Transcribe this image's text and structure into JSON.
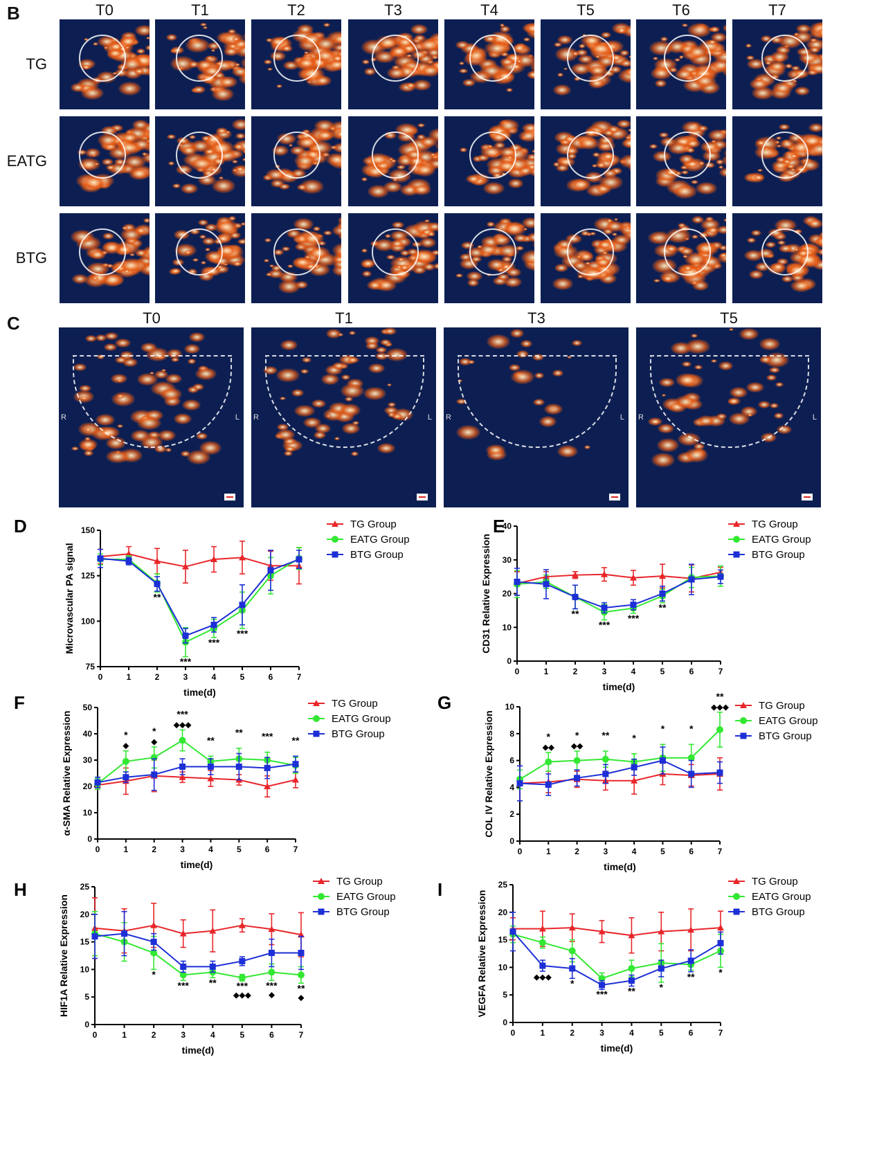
{
  "panels": {
    "B": {
      "letter": "B",
      "columns": [
        "T0",
        "T1",
        "T2",
        "T3",
        "T4",
        "T5",
        "T6",
        "T7"
      ],
      "rows": [
        "TG",
        "EATG",
        "BTG"
      ]
    },
    "C": {
      "letter": "C",
      "columns": [
        "T0",
        "T1",
        "T3",
        "T5"
      ],
      "side_left": "R",
      "side_right": "L"
    }
  },
  "colors": {
    "TG": "#e8262a",
    "EATG": "#33e833",
    "BTG": "#1d2fd6",
    "image_bg": "#0d1f52"
  },
  "chart_data": [
    {
      "panel": "D",
      "type": "line",
      "ylabel": "Microvascular PA signal",
      "xlabel": "time(d)",
      "x": [
        0,
        1,
        2,
        3,
        4,
        5,
        6,
        7
      ],
      "ylim": [
        75,
        150
      ],
      "yticks": [
        75,
        100,
        125,
        150
      ],
      "series": [
        {
          "name": "TG Group",
          "key": "TG",
          "values": [
            135.5,
            137,
            133,
            130,
            134,
            135,
            130.5,
            130.5
          ],
          "err": [
            4,
            4,
            7,
            9,
            7,
            9,
            8,
            10
          ]
        },
        {
          "name": "EATG Group",
          "key": "EATG",
          "values": [
            134,
            134,
            121,
            88.5,
            96,
            106,
            125,
            134.5
          ],
          "err": [
            3,
            2,
            5,
            8,
            5,
            10,
            10,
            6
          ]
        },
        {
          "name": "BTG Group",
          "key": "BTG",
          "values": [
            134.5,
            133,
            120.5,
            92,
            98,
            109,
            128,
            134
          ],
          "err": [
            5,
            2,
            4,
            4,
            4,
            11,
            11,
            5
          ]
        }
      ],
      "annotations": [
        {
          "x": 2,
          "text": "**",
          "place": "below"
        },
        {
          "x": 3,
          "text": "***",
          "place": "below"
        },
        {
          "x": 4,
          "text": "***",
          "place": "below"
        },
        {
          "x": 5,
          "text": "***",
          "place": "below"
        }
      ]
    },
    {
      "panel": "E",
      "type": "line",
      "ylabel": "CD31 Relative Expression",
      "xlabel": "time(d)",
      "x": [
        0,
        1,
        2,
        3,
        4,
        5,
        6,
        7
      ],
      "ylim": [
        0,
        40
      ],
      "yticks": [
        0,
        10,
        20,
        30,
        40
      ],
      "series": [
        {
          "name": "TG Group",
          "key": "TG",
          "values": [
            23,
            25,
            25.5,
            25.7,
            24.7,
            25.2,
            24.5,
            26.3
          ],
          "err": [
            3.5,
            1.5,
            1,
            2,
            2.2,
            3.5,
            4,
            1.5
          ]
        },
        {
          "name": "EATG Group",
          "key": "EATG",
          "values": [
            22.8,
            23.5,
            19,
            14.5,
            15.7,
            19.3,
            24.8,
            25.2
          ],
          "err": [
            4,
            2,
            3.5,
            2.3,
            1.5,
            2,
            3,
            3
          ]
        },
        {
          "name": "BTG Group",
          "key": "BTG",
          "values": [
            23.5,
            22.8,
            19,
            15.8,
            16.7,
            20,
            24.2,
            25
          ],
          "err": [
            4,
            4.3,
            3.5,
            1.5,
            1.5,
            2.2,
            4.5,
            2
          ]
        }
      ],
      "annotations": [
        {
          "x": 2,
          "text": "**",
          "place": "below"
        },
        {
          "x": 3,
          "text": "***",
          "place": "below"
        },
        {
          "x": 4,
          "text": "***",
          "place": "below"
        },
        {
          "x": 5,
          "text": "**",
          "place": "below"
        }
      ]
    },
    {
      "panel": "F",
      "type": "line",
      "ylabel": "α-SMA Relative Expression",
      "xlabel": "time(d)",
      "x": [
        0,
        1,
        2,
        3,
        4,
        5,
        6,
        7
      ],
      "ylim": [
        0,
        50
      ],
      "yticks": [
        0,
        10,
        20,
        30,
        40,
        50
      ],
      "series": [
        {
          "name": "TG Group",
          "key": "TG",
          "values": [
            20.5,
            22,
            24,
            23.5,
            23,
            22.5,
            20,
            22.5
          ],
          "err": [
            1.5,
            5,
            6,
            2,
            3,
            2,
            4,
            3
          ]
        },
        {
          "name": "EATG Group",
          "key": "EATG",
          "values": [
            21,
            29.5,
            31,
            37.5,
            29.5,
            30.5,
            30,
            28
          ],
          "err": [
            2,
            4,
            4,
            4,
            2,
            4,
            3,
            3
          ]
        },
        {
          "name": "BTG Group",
          "key": "BTG",
          "values": [
            21.5,
            23.5,
            24.5,
            27.5,
            27.5,
            27.5,
            27,
            28.5
          ],
          "err": [
            2,
            2,
            6,
            3,
            3,
            5,
            4,
            3
          ]
        }
      ],
      "annotations": [
        {
          "x": 1,
          "text": "*",
          "place": "above"
        },
        {
          "x": 1,
          "text": "◆",
          "place": "above2"
        },
        {
          "x": 2,
          "text": "*",
          "place": "above"
        },
        {
          "x": 2,
          "text": "◆",
          "place": "above2"
        },
        {
          "x": 3,
          "text": "***",
          "place": "above"
        },
        {
          "x": 3,
          "text": "◆◆◆",
          "place": "above2"
        },
        {
          "x": 4,
          "text": "**",
          "place": "above"
        },
        {
          "x": 5,
          "text": "**",
          "place": "above"
        },
        {
          "x": 6,
          "text": "***",
          "place": "above"
        },
        {
          "x": 7,
          "text": "**",
          "place": "above"
        }
      ]
    },
    {
      "panel": "G",
      "type": "line",
      "ylabel": "COL IV Relative Expression",
      "xlabel": "time(d)",
      "x": [
        0,
        1,
        2,
        3,
        4,
        5,
        6,
        7
      ],
      "ylim": [
        0,
        10
      ],
      "yticks": [
        0,
        2,
        4,
        6,
        8,
        10
      ],
      "series": [
        {
          "name": "TG Group",
          "key": "TG",
          "values": [
            4.3,
            4.4,
            4.6,
            4.5,
            4.5,
            5,
            4.9,
            5
          ],
          "err": [
            1.3,
            0.8,
            0.6,
            0.7,
            1,
            0.8,
            0.8,
            1.2
          ]
        },
        {
          "name": "EATG Group",
          "key": "EATG",
          "values": [
            4.6,
            5.9,
            6,
            6.1,
            5.9,
            6.2,
            6.2,
            8.3
          ],
          "err": [
            0.7,
            0.7,
            0.7,
            0.6,
            0.6,
            1,
            1,
            1.3
          ]
        },
        {
          "name": "BTG Group",
          "key": "BTG",
          "values": [
            4.3,
            4.2,
            4.7,
            5,
            5.5,
            6,
            5,
            5.1
          ],
          "err": [
            1.3,
            0.8,
            0.6,
            0.7,
            0.6,
            1,
            1,
            0.8
          ]
        }
      ],
      "annotations": [
        {
          "x": 1,
          "text": "*",
          "place": "above"
        },
        {
          "x": 1,
          "text": "◆◆",
          "place": "above2"
        },
        {
          "x": 2,
          "text": "*",
          "place": "above"
        },
        {
          "x": 2,
          "text": "◆◆",
          "place": "above2"
        },
        {
          "x": 3,
          "text": "**",
          "place": "above"
        },
        {
          "x": 4,
          "text": "*",
          "place": "above"
        },
        {
          "x": 5,
          "text": "*",
          "place": "above"
        },
        {
          "x": 6,
          "text": "*",
          "place": "above"
        },
        {
          "x": 7,
          "text": "**",
          "place": "above"
        },
        {
          "x": 7,
          "text": "◆◆◆",
          "place": "above2"
        }
      ]
    },
    {
      "panel": "H",
      "type": "line",
      "ylabel": "HIF1A Relative Expression",
      "xlabel": "time(d)",
      "x": [
        0,
        1,
        2,
        3,
        4,
        5,
        6,
        7
      ],
      "ylim": [
        0,
        25
      ],
      "yticks": [
        0,
        5,
        10,
        15,
        20,
        25
      ],
      "series": [
        {
          "name": "TG Group",
          "key": "TG",
          "values": [
            17.5,
            17,
            18,
            16.5,
            17,
            18,
            17.3,
            16.3
          ],
          "err": [
            5.5,
            4,
            4,
            2.5,
            3.8,
            1.2,
            2.8,
            4
          ]
        },
        {
          "name": "EATG Group",
          "key": "EATG",
          "values": [
            16.5,
            15,
            13,
            9,
            9.5,
            8.5,
            9.5,
            9
          ],
          "err": [
            4,
            3.5,
            3,
            1,
            1,
            0.6,
            1.5,
            1.5
          ]
        },
        {
          "name": "BTG Group",
          "key": "BTG",
          "values": [
            16,
            16.5,
            15,
            10.5,
            10.5,
            11.5,
            13,
            13
          ],
          "err": [
            4,
            4,
            1.5,
            1,
            1,
            0.8,
            2.5,
            3
          ]
        }
      ],
      "annotations": [
        {
          "x": 2,
          "text": "*",
          "place": "below"
        },
        {
          "x": 3,
          "text": "***",
          "place": "below"
        },
        {
          "x": 4,
          "text": "**",
          "place": "below"
        },
        {
          "x": 5,
          "text": "***",
          "place": "below"
        },
        {
          "x": 5,
          "text": "◆◆◆",
          "place": "below2"
        },
        {
          "x": 6,
          "text": "***",
          "place": "below"
        },
        {
          "x": 6,
          "text": "◆",
          "place": "below2"
        },
        {
          "x": 7,
          "text": "**",
          "place": "below"
        },
        {
          "x": 7,
          "text": "◆",
          "place": "below2"
        }
      ]
    },
    {
      "panel": "I",
      "type": "line",
      "ylabel": "VEGFA Relative Expression",
      "xlabel": "time(d)",
      "x": [
        0,
        1,
        2,
        3,
        4,
        5,
        6,
        7
      ],
      "ylim": [
        0,
        25
      ],
      "yticks": [
        0,
        5,
        10,
        15,
        20,
        25
      ],
      "series": [
        {
          "name": "TG Group",
          "key": "TG",
          "values": [
            17,
            17,
            17.2,
            16.5,
            15.8,
            16.5,
            16.8,
            17.2
          ],
          "err": [
            2,
            3.2,
            2.5,
            2,
            3.2,
            3.5,
            3.8,
            3
          ]
        },
        {
          "name": "EATG Group",
          "key": "EATG",
          "values": [
            16,
            14.5,
            13,
            8,
            9.8,
            10.8,
            10.5,
            13
          ],
          "err": [
            1.5,
            1,
            2,
            1,
            1.5,
            3.5,
            1,
            3
          ]
        },
        {
          "name": "BTG Group",
          "key": "BTG",
          "values": [
            16.5,
            10.3,
            9.8,
            6.8,
            7.6,
            9.8,
            11.2,
            14.4
          ],
          "err": [
            3.5,
            1,
            1.8,
            0.8,
            1,
            1.5,
            2,
            2
          ]
        }
      ],
      "annotations": [
        {
          "x": 1,
          "text": "◆◆◆",
          "place": "below"
        },
        {
          "x": 2,
          "text": "*",
          "place": "below"
        },
        {
          "x": 3,
          "text": "***",
          "place": "below"
        },
        {
          "x": 4,
          "text": "**",
          "place": "below"
        },
        {
          "x": 5,
          "text": "*",
          "place": "below"
        },
        {
          "x": 6,
          "text": "**",
          "place": "below"
        },
        {
          "x": 7,
          "text": "*",
          "place": "below"
        }
      ]
    }
  ]
}
